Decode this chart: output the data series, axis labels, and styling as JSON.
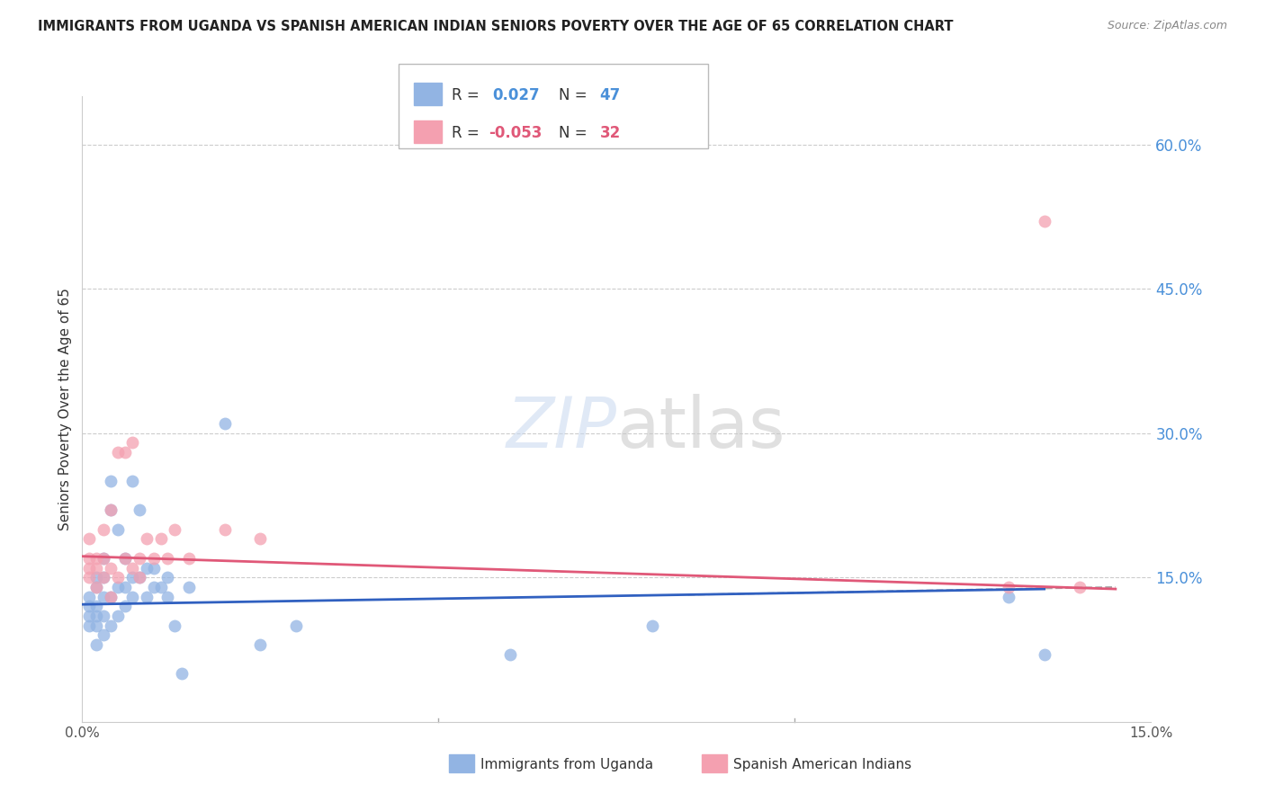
{
  "title": "IMMIGRANTS FROM UGANDA VS SPANISH AMERICAN INDIAN SENIORS POVERTY OVER THE AGE OF 65 CORRELATION CHART",
  "source": "Source: ZipAtlas.com",
  "ylabel": "Seniors Poverty Over the Age of 65",
  "xlim": [
    0.0,
    0.15
  ],
  "ylim": [
    0.0,
    0.65
  ],
  "right_yticklabels": [
    "15.0%",
    "30.0%",
    "45.0%",
    "60.0%"
  ],
  "right_ytick_vals": [
    0.15,
    0.3,
    0.45,
    0.6
  ],
  "legend_r1": "R =  0.027",
  "legend_n1": "N = 47",
  "legend_r2": "R = -0.053",
  "legend_n2": "N = 32",
  "label1": "Immigrants from Uganda",
  "label2": "Spanish American Indians",
  "color1": "#92b4e3",
  "color2": "#f4a0b0",
  "trendline1_color": "#3060c0",
  "trendline2_color": "#e05878",
  "background": "#ffffff",
  "scatter1_x": [
    0.001,
    0.001,
    0.001,
    0.001,
    0.002,
    0.002,
    0.002,
    0.002,
    0.002,
    0.002,
    0.003,
    0.003,
    0.003,
    0.003,
    0.003,
    0.004,
    0.004,
    0.004,
    0.004,
    0.005,
    0.005,
    0.005,
    0.006,
    0.006,
    0.006,
    0.007,
    0.007,
    0.007,
    0.008,
    0.008,
    0.009,
    0.009,
    0.01,
    0.01,
    0.011,
    0.012,
    0.012,
    0.013,
    0.014,
    0.015,
    0.02,
    0.025,
    0.03,
    0.06,
    0.08,
    0.13,
    0.135
  ],
  "scatter1_y": [
    0.1,
    0.11,
    0.12,
    0.13,
    0.08,
    0.1,
    0.11,
    0.12,
    0.14,
    0.15,
    0.09,
    0.11,
    0.13,
    0.15,
    0.17,
    0.1,
    0.13,
    0.22,
    0.25,
    0.11,
    0.14,
    0.2,
    0.12,
    0.14,
    0.17,
    0.13,
    0.15,
    0.25,
    0.15,
    0.22,
    0.13,
    0.16,
    0.14,
    0.16,
    0.14,
    0.13,
    0.15,
    0.1,
    0.05,
    0.14,
    0.31,
    0.08,
    0.1,
    0.07,
    0.1,
    0.13,
    0.07
  ],
  "scatter2_x": [
    0.001,
    0.001,
    0.001,
    0.001,
    0.002,
    0.002,
    0.002,
    0.003,
    0.003,
    0.003,
    0.004,
    0.004,
    0.004,
    0.005,
    0.005,
    0.006,
    0.006,
    0.007,
    0.007,
    0.008,
    0.008,
    0.009,
    0.01,
    0.011,
    0.012,
    0.013,
    0.015,
    0.02,
    0.025,
    0.13,
    0.135,
    0.14
  ],
  "scatter2_y": [
    0.15,
    0.16,
    0.17,
    0.19,
    0.14,
    0.16,
    0.17,
    0.15,
    0.17,
    0.2,
    0.13,
    0.16,
    0.22,
    0.15,
    0.28,
    0.17,
    0.28,
    0.16,
    0.29,
    0.15,
    0.17,
    0.19,
    0.17,
    0.19,
    0.17,
    0.2,
    0.17,
    0.2,
    0.19,
    0.14,
    0.52,
    0.14
  ],
  "trendline1_x0": 0.0,
  "trendline1_x1": 0.135,
  "trendline1_y0": 0.122,
  "trendline1_y1": 0.138,
  "trendline1_dash_x0": 0.085,
  "trendline1_dash_x1": 0.145,
  "trendline1_dash_y0": 0.132,
  "trendline1_dash_y1": 0.14,
  "trendline2_x0": 0.0,
  "trendline2_x1": 0.145,
  "trendline2_y0": 0.172,
  "trendline2_y1": 0.138
}
